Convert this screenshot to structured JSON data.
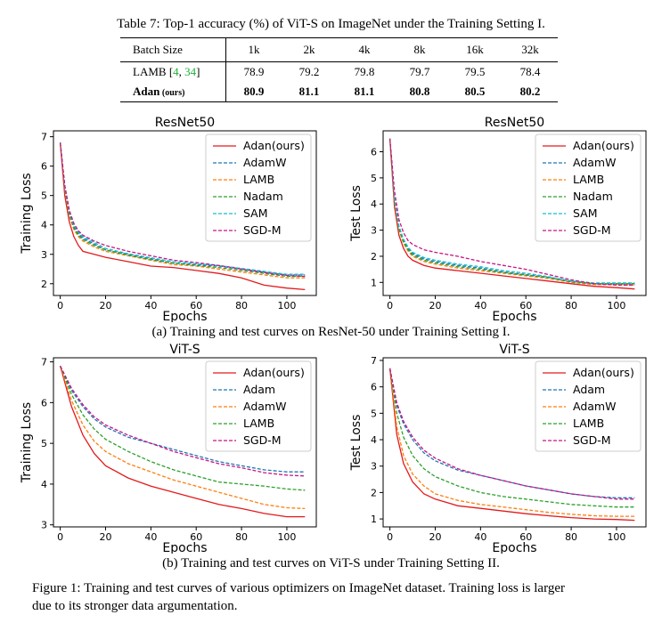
{
  "table": {
    "caption": "Table 7: Top-1 accuracy (%) of ViT-S on ImageNet under the Training Setting I.",
    "header": [
      "Batch Size",
      "1k",
      "2k",
      "4k",
      "8k",
      "16k",
      "32k"
    ],
    "rows": [
      {
        "name": "LAMB",
        "cite_open": " [",
        "cite_a": "4",
        "cite_sep": ", ",
        "cite_b": "34",
        "cite_close": "]",
        "values": [
          "78.9",
          "79.2",
          "79.8",
          "79.7",
          "79.5",
          "78.4"
        ]
      },
      {
        "name": "Adan",
        "suffix": " (ours)",
        "values": [
          "80.9",
          "81.1",
          "81.1",
          "80.8",
          "80.5",
          "80.2"
        ]
      }
    ]
  },
  "subcaption_a": "(a) Training and test curves on ResNet-50 under Training Setting I.",
  "subcaption_b": "(b) Training and test curves on ViT-S under Training Setting II.",
  "figure_caption_line1": "Figure 1: Training and test curves of various optimizers on ImageNet dataset. Training loss is larger",
  "figure_caption_line2": "due to its stronger data argumentation.",
  "colors": {
    "Adan(ours)": "#e31a1c",
    "AdamW": "#1f77b4",
    "LAMB": "#ff7f0e",
    "Nadam": "#2ca02c",
    "SAM": "#17becf",
    "SGD-M": "#c71585",
    "Adam": "#1f77b4",
    "AdamW_vit": "#ff7f0e",
    "LAMB_vit": "#2ca02c",
    "SGD-M_vit": "#c71585"
  },
  "chart_data": [
    {
      "type": "line",
      "title": "ResNet50",
      "xlabel": "Epochs",
      "ylabel": "Training Loss",
      "xlim": [
        -3,
        113
      ],
      "ylim": [
        1.6,
        7.2
      ],
      "xticks": [
        0,
        20,
        40,
        60,
        80,
        100
      ],
      "yticks": [
        2,
        3,
        4,
        5,
        6,
        7
      ],
      "legend": "top-right",
      "x": [
        0,
        2,
        4,
        6,
        8,
        10,
        15,
        20,
        30,
        40,
        50,
        60,
        70,
        80,
        90,
        100,
        108
      ],
      "series": [
        {
          "name": "Adan(ours)",
          "color": "#e31a1c",
          "values": [
            6.8,
            5.0,
            4.1,
            3.6,
            3.3,
            3.1,
            3.0,
            2.9,
            2.75,
            2.6,
            2.55,
            2.45,
            2.35,
            2.2,
            1.95,
            1.85,
            1.8
          ]
        },
        {
          "name": "AdamW",
          "color": "#1f77b4",
          "values": [
            6.8,
            5.3,
            4.4,
            3.95,
            3.7,
            3.55,
            3.35,
            3.15,
            3.0,
            2.85,
            2.7,
            2.65,
            2.6,
            2.5,
            2.4,
            2.3,
            2.3
          ]
        },
        {
          "name": "LAMB",
          "color": "#ff7f0e",
          "values": [
            6.8,
            5.2,
            4.3,
            3.85,
            3.6,
            3.45,
            3.25,
            3.1,
            2.95,
            2.8,
            2.65,
            2.6,
            2.5,
            2.4,
            2.3,
            2.2,
            2.2
          ]
        },
        {
          "name": "Nadam",
          "color": "#2ca02c",
          "values": [
            6.8,
            5.25,
            4.35,
            3.9,
            3.65,
            3.5,
            3.3,
            3.15,
            2.97,
            2.82,
            2.7,
            2.62,
            2.55,
            2.45,
            2.35,
            2.25,
            2.25
          ]
        },
        {
          "name": "SAM",
          "color": "#17becf",
          "values": [
            6.8,
            5.3,
            4.45,
            4.0,
            3.75,
            3.6,
            3.4,
            3.2,
            3.02,
            2.88,
            2.75,
            2.68,
            2.62,
            2.52,
            2.42,
            2.32,
            2.32
          ]
        },
        {
          "name": "SGD-M",
          "color": "#c71585",
          "values": [
            6.8,
            5.35,
            4.5,
            4.05,
            3.8,
            3.65,
            3.45,
            3.3,
            3.1,
            2.95,
            2.8,
            2.72,
            2.62,
            2.5,
            2.38,
            2.28,
            2.25
          ]
        }
      ]
    },
    {
      "type": "line",
      "title": "ResNet50",
      "xlabel": "Epochs",
      "ylabel": "Test Loss",
      "xlim": [
        -3,
        113
      ],
      "ylim": [
        0.5,
        6.8
      ],
      "xticks": [
        0,
        20,
        40,
        60,
        80,
        100
      ],
      "yticks": [
        1,
        2,
        3,
        4,
        5,
        6
      ],
      "legend": "top-right",
      "x": [
        0,
        2,
        4,
        6,
        8,
        10,
        15,
        20,
        30,
        40,
        50,
        60,
        70,
        80,
        90,
        100,
        108
      ],
      "series": [
        {
          "name": "Adan(ours)",
          "color": "#e31a1c",
          "values": [
            6.5,
            3.9,
            2.8,
            2.3,
            2.0,
            1.85,
            1.65,
            1.55,
            1.45,
            1.35,
            1.25,
            1.15,
            1.05,
            0.95,
            0.85,
            0.8,
            0.75
          ]
        },
        {
          "name": "AdamW",
          "color": "#1f77b4",
          "values": [
            6.5,
            4.2,
            3.1,
            2.6,
            2.3,
            2.1,
            1.9,
            1.8,
            1.65,
            1.55,
            1.4,
            1.3,
            1.2,
            1.05,
            0.95,
            0.95,
            0.95
          ]
        },
        {
          "name": "LAMB",
          "color": "#ff7f0e",
          "values": [
            6.5,
            4.1,
            3.0,
            2.5,
            2.2,
            2.0,
            1.8,
            1.7,
            1.55,
            1.45,
            1.35,
            1.25,
            1.15,
            1.0,
            0.92,
            0.92,
            0.9
          ]
        },
        {
          "name": "Nadam",
          "color": "#2ca02c",
          "values": [
            6.5,
            4.15,
            3.05,
            2.55,
            2.25,
            2.05,
            1.85,
            1.75,
            1.6,
            1.5,
            1.38,
            1.28,
            1.18,
            1.02,
            0.95,
            0.95,
            0.95
          ]
        },
        {
          "name": "SAM",
          "color": "#17becf",
          "values": [
            6.5,
            4.25,
            3.15,
            2.65,
            2.35,
            2.15,
            1.95,
            1.85,
            1.7,
            1.6,
            1.45,
            1.35,
            1.22,
            1.05,
            0.98,
            0.98,
            0.98
          ]
        },
        {
          "name": "SGD-M",
          "color": "#c71585",
          "values": [
            6.5,
            4.5,
            3.4,
            2.9,
            2.6,
            2.45,
            2.25,
            2.15,
            2.0,
            1.8,
            1.65,
            1.5,
            1.3,
            1.1,
            0.95,
            0.9,
            0.9
          ]
        }
      ]
    },
    {
      "type": "line",
      "title": "ViT-S",
      "xlabel": "Epochs",
      "ylabel": "Training Loss",
      "xlim": [
        -3,
        113
      ],
      "ylim": [
        2.95,
        7.1
      ],
      "xticks": [
        0,
        20,
        40,
        60,
        80,
        100
      ],
      "yticks": [
        3,
        4,
        5,
        6,
        7
      ],
      "legend": "top-right",
      "x": [
        0,
        5,
        10,
        15,
        20,
        30,
        40,
        50,
        60,
        70,
        80,
        90,
        100,
        108
      ],
      "series": [
        {
          "name": "Adan(ours)",
          "color": "#e31a1c",
          "values": [
            6.9,
            5.9,
            5.2,
            4.75,
            4.45,
            4.15,
            3.95,
            3.8,
            3.65,
            3.5,
            3.4,
            3.28,
            3.2,
            3.2
          ]
        },
        {
          "name": "Adam",
          "color": "#1f77b4",
          "values": [
            6.9,
            6.3,
            5.9,
            5.6,
            5.4,
            5.15,
            5.0,
            4.85,
            4.7,
            4.55,
            4.45,
            4.35,
            4.3,
            4.3
          ]
        },
        {
          "name": "AdamW",
          "color": "#ff7f0e",
          "values": [
            6.9,
            6.05,
            5.45,
            5.05,
            4.8,
            4.5,
            4.3,
            4.1,
            3.95,
            3.8,
            3.65,
            3.5,
            3.42,
            3.4
          ]
        },
        {
          "name": "LAMB",
          "color": "#2ca02c",
          "values": [
            6.9,
            6.2,
            5.7,
            5.35,
            5.1,
            4.8,
            4.55,
            4.35,
            4.2,
            4.05,
            4.0,
            3.95,
            3.88,
            3.85
          ]
        },
        {
          "name": "SGD-M",
          "color": "#c71585",
          "values": [
            6.9,
            6.35,
            5.95,
            5.65,
            5.45,
            5.2,
            5.0,
            4.8,
            4.65,
            4.5,
            4.4,
            4.28,
            4.22,
            4.2
          ]
        }
      ]
    },
    {
      "type": "line",
      "title": "ViT-S",
      "xlabel": "Epochs",
      "ylabel": "Test Loss",
      "xlim": [
        -3,
        113
      ],
      "ylim": [
        0.7,
        7.1
      ],
      "xticks": [
        0,
        20,
        40,
        60,
        80,
        100
      ],
      "yticks": [
        1,
        2,
        3,
        4,
        5,
        6,
        7
      ],
      "legend": "top-right",
      "x": [
        0,
        3,
        6,
        10,
        15,
        20,
        30,
        40,
        50,
        60,
        70,
        80,
        90,
        100,
        108
      ],
      "series": [
        {
          "name": "Adan(ours)",
          "color": "#e31a1c",
          "values": [
            6.7,
            4.2,
            3.1,
            2.4,
            1.95,
            1.75,
            1.5,
            1.4,
            1.3,
            1.2,
            1.12,
            1.05,
            1.0,
            0.98,
            0.95
          ]
        },
        {
          "name": "Adam",
          "color": "#1f77b4",
          "values": [
            6.7,
            5.3,
            4.6,
            4.0,
            3.5,
            3.2,
            2.85,
            2.65,
            2.45,
            2.25,
            2.1,
            1.95,
            1.85,
            1.8,
            1.8
          ]
        },
        {
          "name": "AdamW",
          "color": "#ff7f0e",
          "values": [
            6.7,
            4.5,
            3.4,
            2.7,
            2.25,
            1.95,
            1.7,
            1.55,
            1.45,
            1.35,
            1.25,
            1.18,
            1.12,
            1.1,
            1.1
          ]
        },
        {
          "name": "LAMB",
          "color": "#2ca02c",
          "values": [
            6.7,
            5.0,
            4.1,
            3.4,
            2.9,
            2.6,
            2.25,
            2.0,
            1.85,
            1.75,
            1.65,
            1.55,
            1.5,
            1.45,
            1.45
          ]
        },
        {
          "name": "SGD-M",
          "color": "#c71585",
          "values": [
            6.7,
            5.4,
            4.7,
            4.1,
            3.6,
            3.3,
            2.9,
            2.65,
            2.45,
            2.25,
            2.1,
            1.95,
            1.85,
            1.75,
            1.75
          ]
        }
      ]
    }
  ]
}
